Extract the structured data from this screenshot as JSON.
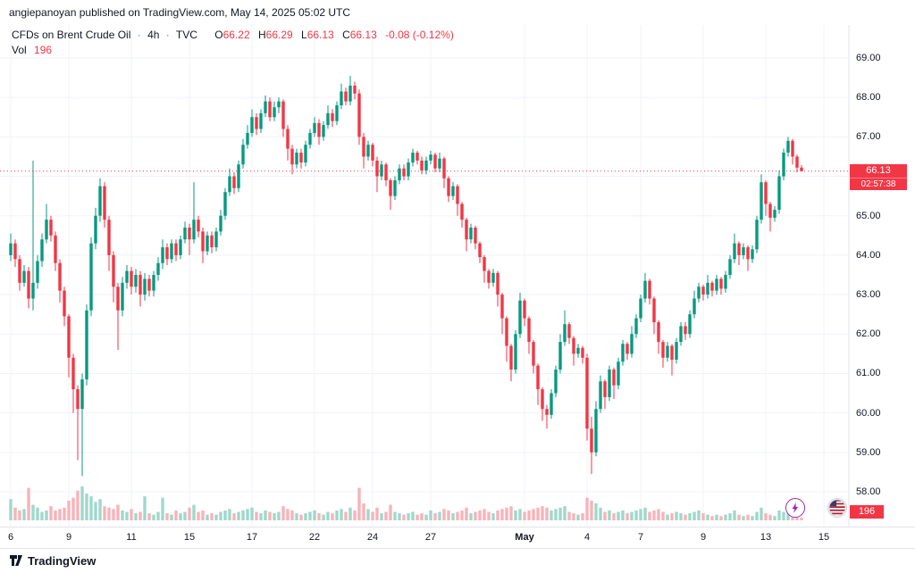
{
  "attribution": "angiepanoyan published on TradingView.com, May 14, 2025 05:02 UTC",
  "legend": {
    "title": "CFDs on Brent Crude Oil",
    "separator": "·",
    "interval": "4h",
    "exchange": "TVC",
    "o_label": "O",
    "o_value": "66.22",
    "h_label": "H",
    "h_value": "66.29",
    "l_label": "L",
    "l_value": "66.13",
    "c_label": "C",
    "c_value": "66.13",
    "change": "-0.08 (-0.12%)",
    "vol_label": "Vol",
    "vol_value": "196"
  },
  "price_axis": {
    "labels": [
      "69.00",
      "68.00",
      "67.00",
      "66.00",
      "65.00",
      "64.00",
      "63.00",
      "62.00",
      "61.00",
      "60.00",
      "59.00",
      "58.00"
    ],
    "last_price": "66.13",
    "countdown": "02:57:38",
    "volume_badge": "196"
  },
  "time_axis": {
    "labels": [
      {
        "text": "6",
        "index": 0,
        "bold": false
      },
      {
        "text": "9",
        "index": 13,
        "bold": false
      },
      {
        "text": "11",
        "index": 27,
        "bold": false
      },
      {
        "text": "15",
        "index": 40,
        "bold": false
      },
      {
        "text": "17",
        "index": 54,
        "bold": false
      },
      {
        "text": "22",
        "index": 68,
        "bold": false
      },
      {
        "text": "24",
        "index": 81,
        "bold": false
      },
      {
        "text": "27",
        "index": 94,
        "bold": false
      },
      {
        "text": "May",
        "index": 115,
        "bold": true
      },
      {
        "text": "4",
        "index": 129,
        "bold": false
      },
      {
        "text": "7",
        "index": 141,
        "bold": false
      },
      {
        "text": "9",
        "index": 155,
        "bold": false
      },
      {
        "text": "13",
        "index": 169,
        "bold": false
      },
      {
        "text": "15",
        "index": 182,
        "bold": false
      }
    ]
  },
  "footer": {
    "brand": "TradingView"
  },
  "colors": {
    "up": "#089981",
    "down": "#f23645",
    "vol_up": "#9fd8cb",
    "vol_down": "#f8b3ba",
    "grid": "#f0f3fa",
    "axis_divider": "#e0e3eb",
    "badge": "#f23645",
    "text": "#131722",
    "bolt": "#9c27b0"
  },
  "chart_data": {
    "type": "candlestick",
    "title": "CFDs on Brent Crude Oil",
    "interval": "4h",
    "exchange": "TVC",
    "last": 66.13,
    "change": -0.08,
    "change_pct": -0.12,
    "last_volume": 196,
    "price_range": [
      58,
      69
    ],
    "x_range": [
      "Apr 6",
      "May 15"
    ],
    "legend_position": "top-left",
    "grid": true,
    "candles_format": [
      "open",
      "high",
      "low",
      "close",
      "volume"
    ],
    "candles": [
      [
        64.0,
        64.55,
        63.85,
        64.3,
        1500
      ],
      [
        64.3,
        64.4,
        63.7,
        63.9,
        900
      ],
      [
        63.9,
        64.0,
        63.1,
        63.3,
        700
      ],
      [
        63.3,
        63.75,
        63.2,
        63.6,
        800
      ],
      [
        63.6,
        63.7,
        62.65,
        62.9,
        2300
      ],
      [
        62.9,
        66.4,
        62.6,
        63.3,
        1100
      ],
      [
        63.3,
        64.0,
        63.15,
        63.85,
        900
      ],
      [
        63.85,
        64.55,
        63.7,
        64.4,
        600
      ],
      [
        64.4,
        65.3,
        64.3,
        64.9,
        700
      ],
      [
        64.9,
        65.0,
        64.35,
        64.5,
        1000
      ],
      [
        64.5,
        64.6,
        63.6,
        63.8,
        700
      ],
      [
        63.8,
        63.9,
        62.8,
        63.1,
        800
      ],
      [
        63.1,
        63.2,
        62.2,
        62.45,
        900
      ],
      [
        62.45,
        62.5,
        60.9,
        61.4,
        1400
      ],
      [
        61.4,
        61.5,
        60.0,
        60.6,
        1600
      ],
      [
        60.6,
        60.7,
        58.8,
        60.1,
        2100
      ],
      [
        60.1,
        61.0,
        58.4,
        60.85,
        2400
      ],
      [
        60.85,
        62.75,
        60.7,
        62.6,
        1900
      ],
      [
        62.6,
        64.45,
        62.45,
        64.3,
        1700
      ],
      [
        64.3,
        65.2,
        64.15,
        65.0,
        1300
      ],
      [
        65.0,
        65.95,
        64.85,
        65.75,
        1500
      ],
      [
        65.75,
        65.85,
        64.7,
        64.9,
        1000
      ],
      [
        64.9,
        65.0,
        63.6,
        64.0,
        900
      ],
      [
        64.0,
        64.1,
        62.8,
        63.2,
        800
      ],
      [
        63.2,
        63.3,
        61.6,
        62.6,
        1100
      ],
      [
        62.6,
        63.45,
        62.45,
        63.3,
        700
      ],
      [
        63.3,
        63.75,
        63.15,
        63.6,
        600
      ],
      [
        63.6,
        63.7,
        63.0,
        63.2,
        800
      ],
      [
        63.2,
        63.65,
        63.05,
        63.5,
        500
      ],
      [
        63.5,
        63.6,
        62.7,
        63.0,
        600
      ],
      [
        63.0,
        63.55,
        62.85,
        63.4,
        1700
      ],
      [
        63.4,
        63.5,
        62.95,
        63.1,
        500
      ],
      [
        63.1,
        63.6,
        62.95,
        63.5,
        400
      ],
      [
        63.5,
        63.95,
        63.35,
        63.8,
        600
      ],
      [
        63.8,
        64.4,
        63.65,
        64.2,
        1600
      ],
      [
        64.2,
        64.3,
        63.75,
        63.9,
        500
      ],
      [
        63.9,
        64.4,
        63.8,
        64.3,
        400
      ],
      [
        64.3,
        64.4,
        63.85,
        64.0,
        700
      ],
      [
        64.0,
        64.5,
        63.9,
        64.4,
        500
      ],
      [
        64.4,
        64.85,
        64.3,
        64.7,
        600
      ],
      [
        64.7,
        64.8,
        64.0,
        64.4,
        900
      ],
      [
        64.4,
        65.85,
        64.3,
        64.9,
        1100
      ],
      [
        64.9,
        65.0,
        64.45,
        64.6,
        600
      ],
      [
        64.6,
        64.7,
        63.8,
        64.1,
        700
      ],
      [
        64.1,
        64.6,
        64.0,
        64.5,
        400
      ],
      [
        64.5,
        64.6,
        64.05,
        64.2,
        500
      ],
      [
        64.2,
        64.7,
        64.1,
        64.6,
        400
      ],
      [
        64.6,
        65.15,
        64.5,
        65.0,
        600
      ],
      [
        65.0,
        65.7,
        64.9,
        65.6,
        700
      ],
      [
        65.6,
        66.2,
        65.5,
        66.0,
        800
      ],
      [
        66.0,
        66.1,
        65.55,
        65.7,
        500
      ],
      [
        65.7,
        66.4,
        65.6,
        66.3,
        600
      ],
      [
        66.3,
        66.95,
        66.2,
        66.8,
        700
      ],
      [
        66.8,
        67.3,
        66.7,
        67.1,
        800
      ],
      [
        67.1,
        67.7,
        67.0,
        67.5,
        900
      ],
      [
        67.5,
        67.6,
        67.05,
        67.2,
        600
      ],
      [
        67.2,
        67.7,
        67.1,
        67.6,
        500
      ],
      [
        67.6,
        68.05,
        67.5,
        67.9,
        700
      ],
      [
        67.9,
        68.0,
        67.4,
        67.5,
        600
      ],
      [
        67.5,
        67.9,
        67.4,
        67.75,
        500
      ],
      [
        67.75,
        68.0,
        67.6,
        67.9,
        600
      ],
      [
        67.9,
        67.95,
        67.0,
        67.2,
        1000
      ],
      [
        67.2,
        67.3,
        66.4,
        66.7,
        800
      ],
      [
        66.7,
        66.8,
        66.05,
        66.3,
        700
      ],
      [
        66.3,
        66.7,
        66.2,
        66.6,
        500
      ],
      [
        66.6,
        66.7,
        66.2,
        66.35,
        400
      ],
      [
        66.35,
        66.9,
        66.25,
        66.8,
        500
      ],
      [
        66.8,
        67.2,
        66.7,
        67.1,
        600
      ],
      [
        67.1,
        67.5,
        67.0,
        67.35,
        700
      ],
      [
        67.35,
        67.45,
        66.8,
        67.0,
        500
      ],
      [
        67.0,
        67.4,
        66.9,
        67.3,
        400
      ],
      [
        67.3,
        67.8,
        67.2,
        67.6,
        600
      ],
      [
        67.6,
        67.7,
        67.25,
        67.4,
        500
      ],
      [
        67.4,
        67.9,
        67.3,
        67.8,
        700
      ],
      [
        67.8,
        68.35,
        67.7,
        68.15,
        800
      ],
      [
        68.15,
        68.25,
        67.8,
        67.9,
        600
      ],
      [
        67.9,
        68.55,
        67.8,
        68.3,
        900
      ],
      [
        68.3,
        68.4,
        67.95,
        68.1,
        700
      ],
      [
        68.1,
        68.2,
        66.8,
        67.0,
        2300
      ],
      [
        67.0,
        67.1,
        66.2,
        66.5,
        1200
      ],
      [
        66.5,
        66.9,
        66.4,
        66.8,
        800
      ],
      [
        66.8,
        66.85,
        66.25,
        66.4,
        600
      ],
      [
        66.4,
        66.5,
        65.6,
        66.0,
        900
      ],
      [
        66.0,
        66.4,
        65.9,
        66.3,
        500
      ],
      [
        66.3,
        66.35,
        65.75,
        65.9,
        600
      ],
      [
        65.9,
        65.95,
        65.15,
        65.5,
        1100
      ],
      [
        65.5,
        66.0,
        65.4,
        65.9,
        600
      ],
      [
        65.9,
        66.3,
        65.8,
        66.2,
        500
      ],
      [
        66.2,
        66.3,
        65.9,
        66.0,
        400
      ],
      [
        66.0,
        66.45,
        65.9,
        66.35,
        500
      ],
      [
        66.35,
        66.7,
        66.25,
        66.6,
        600
      ],
      [
        66.6,
        66.65,
        66.3,
        66.4,
        400
      ],
      [
        66.4,
        66.5,
        66.05,
        66.15,
        500
      ],
      [
        66.15,
        66.5,
        66.05,
        66.4,
        400
      ],
      [
        66.4,
        66.65,
        66.3,
        66.55,
        700
      ],
      [
        66.55,
        66.6,
        66.1,
        66.2,
        500
      ],
      [
        66.2,
        66.6,
        66.1,
        66.45,
        600
      ],
      [
        66.45,
        66.5,
        65.7,
        65.95,
        800
      ],
      [
        65.95,
        66.0,
        65.35,
        65.5,
        700
      ],
      [
        65.5,
        65.85,
        65.4,
        65.75,
        500
      ],
      [
        65.75,
        65.8,
        65.0,
        65.3,
        600
      ],
      [
        65.3,
        65.35,
        64.7,
        64.9,
        700
      ],
      [
        64.9,
        64.95,
        64.1,
        64.4,
        900
      ],
      [
        64.4,
        64.8,
        64.3,
        64.7,
        500
      ],
      [
        64.7,
        64.75,
        64.15,
        64.3,
        600
      ],
      [
        64.3,
        64.35,
        63.8,
        63.95,
        700
      ],
      [
        63.95,
        64.0,
        63.3,
        63.6,
        800
      ],
      [
        63.6,
        63.65,
        63.15,
        63.3,
        600
      ],
      [
        63.3,
        63.65,
        63.2,
        63.55,
        500
      ],
      [
        63.55,
        63.6,
        62.7,
        63.0,
        700
      ],
      [
        63.0,
        63.05,
        62.0,
        62.4,
        800
      ],
      [
        62.4,
        62.45,
        61.3,
        61.7,
        900
      ],
      [
        61.7,
        61.75,
        60.8,
        61.1,
        1000
      ],
      [
        61.1,
        62.1,
        61.0,
        62.0,
        700
      ],
      [
        62.0,
        63.05,
        61.9,
        62.85,
        800
      ],
      [
        62.85,
        62.9,
        62.2,
        62.4,
        600
      ],
      [
        62.4,
        62.45,
        61.5,
        61.8,
        700
      ],
      [
        61.8,
        61.85,
        61.0,
        61.2,
        800
      ],
      [
        61.2,
        61.25,
        60.2,
        60.6,
        900
      ],
      [
        60.6,
        60.65,
        59.8,
        60.1,
        1000
      ],
      [
        60.1,
        60.2,
        59.6,
        59.95,
        900
      ],
      [
        59.95,
        60.6,
        59.85,
        60.5,
        700
      ],
      [
        60.5,
        61.2,
        60.4,
        61.1,
        800
      ],
      [
        61.1,
        62.0,
        61.0,
        61.8,
        900
      ],
      [
        61.8,
        62.6,
        61.7,
        62.25,
        1000
      ],
      [
        62.25,
        62.3,
        61.75,
        61.9,
        600
      ],
      [
        61.9,
        61.95,
        61.2,
        61.5,
        500
      ],
      [
        61.5,
        61.75,
        61.4,
        61.65,
        400
      ],
      [
        61.65,
        61.7,
        61.25,
        61.4,
        500
      ],
      [
        61.4,
        61.5,
        59.3,
        59.6,
        1600
      ],
      [
        59.6,
        59.9,
        58.45,
        59.0,
        1400
      ],
      [
        59.0,
        60.3,
        58.9,
        60.1,
        1200
      ],
      [
        60.1,
        60.95,
        60.0,
        60.8,
        900
      ],
      [
        60.8,
        60.85,
        60.1,
        60.4,
        600
      ],
      [
        60.4,
        61.2,
        60.3,
        61.1,
        700
      ],
      [
        61.1,
        61.15,
        60.35,
        60.7,
        500
      ],
      [
        60.7,
        61.4,
        60.6,
        61.3,
        600
      ],
      [
        61.3,
        61.85,
        61.2,
        61.75,
        700
      ],
      [
        61.75,
        61.8,
        61.35,
        61.5,
        500
      ],
      [
        61.5,
        62.2,
        61.4,
        62.0,
        600
      ],
      [
        62.0,
        62.5,
        61.9,
        62.4,
        700
      ],
      [
        62.4,
        63.0,
        62.3,
        62.9,
        800
      ],
      [
        62.9,
        63.55,
        62.8,
        63.35,
        900
      ],
      [
        63.35,
        63.4,
        62.75,
        62.9,
        600
      ],
      [
        62.9,
        62.95,
        62.0,
        62.3,
        700
      ],
      [
        62.3,
        62.35,
        61.5,
        61.8,
        800
      ],
      [
        61.8,
        61.85,
        61.15,
        61.4,
        600
      ],
      [
        61.4,
        61.8,
        61.3,
        61.7,
        400
      ],
      [
        61.7,
        61.75,
        60.95,
        61.35,
        500
      ],
      [
        61.35,
        61.9,
        61.25,
        61.8,
        600
      ],
      [
        61.8,
        62.3,
        61.7,
        62.2,
        500
      ],
      [
        62.2,
        62.3,
        61.85,
        62.0,
        400
      ],
      [
        62.0,
        62.6,
        61.9,
        62.5,
        500
      ],
      [
        62.5,
        63.1,
        62.4,
        62.9,
        600
      ],
      [
        62.9,
        63.3,
        62.8,
        63.2,
        700
      ],
      [
        63.2,
        63.25,
        62.85,
        63.0,
        500
      ],
      [
        63.0,
        63.5,
        62.9,
        63.3,
        400
      ],
      [
        63.3,
        63.35,
        62.95,
        63.1,
        300
      ],
      [
        63.1,
        63.5,
        63.0,
        63.4,
        400
      ],
      [
        63.4,
        63.45,
        63.0,
        63.15,
        300
      ],
      [
        63.15,
        63.6,
        63.05,
        63.5,
        400
      ],
      [
        63.5,
        64.0,
        63.4,
        63.9,
        500
      ],
      [
        63.9,
        64.55,
        63.8,
        64.3,
        700
      ],
      [
        64.3,
        64.35,
        63.75,
        64.0,
        400
      ],
      [
        64.0,
        64.3,
        63.9,
        64.2,
        300
      ],
      [
        64.2,
        64.25,
        63.6,
        63.9,
        400
      ],
      [
        63.9,
        64.25,
        63.8,
        64.15,
        300
      ],
      [
        64.15,
        65.0,
        64.05,
        64.9,
        600
      ],
      [
        64.9,
        66.05,
        64.8,
        65.85,
        900
      ],
      [
        65.85,
        65.9,
        65.0,
        65.3,
        500
      ],
      [
        65.3,
        65.35,
        64.6,
        64.95,
        400
      ],
      [
        64.95,
        65.25,
        64.85,
        65.15,
        300
      ],
      [
        65.15,
        66.15,
        65.05,
        66.0,
        700
      ],
      [
        66.0,
        66.7,
        65.9,
        66.6,
        600
      ],
      [
        66.6,
        67.0,
        66.5,
        66.9,
        500
      ],
      [
        66.9,
        66.95,
        66.3,
        66.5,
        400
      ],
      [
        66.5,
        66.55,
        66.1,
        66.22,
        300
      ],
      [
        66.22,
        66.29,
        66.13,
        66.13,
        196
      ]
    ]
  }
}
